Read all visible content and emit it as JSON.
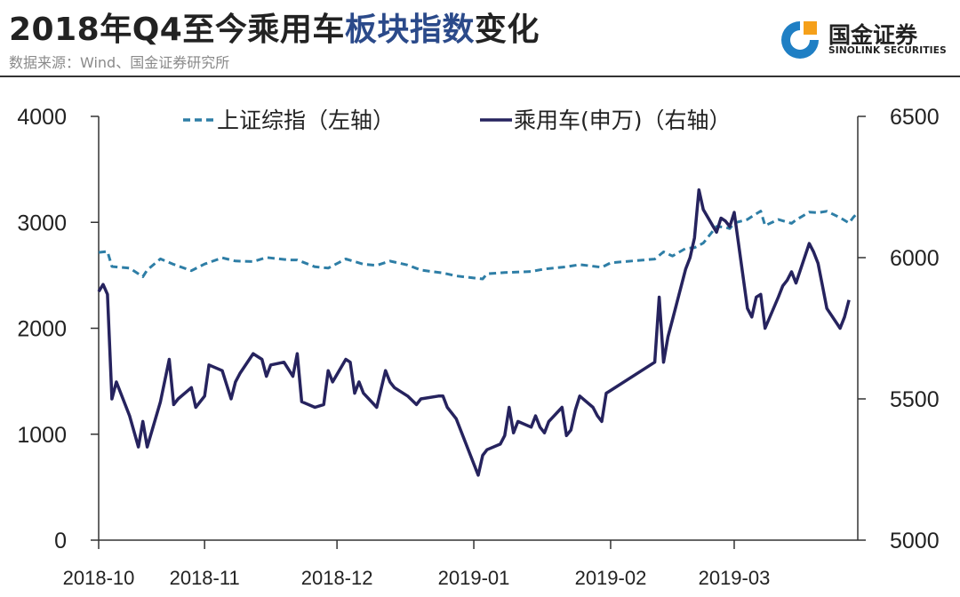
{
  "header": {
    "title_prefix": "2018年Q4至今乘用车",
    "title_highlight": "板块指数",
    "title_suffix": "变化",
    "source": "数据来源：Wind、国金证券研究所"
  },
  "logo": {
    "name": "国金证券",
    "english": "SINOLINK SECURITIES",
    "icon": "sinolink-logo-icon",
    "colors": {
      "blue": "#1f7fc4",
      "orange": "#f5a01a"
    }
  },
  "chart_data": {
    "type": "line",
    "title": "2018年Q4至今乘用车板块指数变化",
    "x_ticks": [
      "2018-10",
      "2018-11",
      "2018-12",
      "2019-01",
      "2019-02",
      "2019-03"
    ],
    "xlim": [
      "2018-10-08",
      "2019-03-29"
    ],
    "y_left": {
      "label": "上证综指（左轴）",
      "ticks": [
        0,
        1000,
        2000,
        3000,
        4000
      ],
      "ylim": [
        0,
        4000
      ]
    },
    "y_right": {
      "label": "乘用车(申万)（右轴）",
      "ticks": [
        5000,
        5500,
        6000,
        6500
      ],
      "ylim": [
        5000,
        6500
      ]
    },
    "grid": false,
    "legend": "top",
    "series": [
      {
        "name": "上证综指（左轴）",
        "axis": "left",
        "color": "#2e7ea6",
        "style": "dashed",
        "points": [
          [
            "2018-10-08",
            2716
          ],
          [
            "2018-10-10",
            2725
          ],
          [
            "2018-10-11",
            2583
          ],
          [
            "2018-10-15",
            2568
          ],
          [
            "2018-10-18",
            2486
          ],
          [
            "2018-10-19",
            2550
          ],
          [
            "2018-10-22",
            2655
          ],
          [
            "2018-10-25",
            2603
          ],
          [
            "2018-10-29",
            2543
          ],
          [
            "2018-11-01",
            2606
          ],
          [
            "2018-11-05",
            2665
          ],
          [
            "2018-11-08",
            2635
          ],
          [
            "2018-11-12",
            2630
          ],
          [
            "2018-11-15",
            2668
          ],
          [
            "2018-11-20",
            2645
          ],
          [
            "2018-11-22",
            2645
          ],
          [
            "2018-11-26",
            2580
          ],
          [
            "2018-11-29",
            2568
          ],
          [
            "2018-12-03",
            2654
          ],
          [
            "2018-12-07",
            2605
          ],
          [
            "2018-12-10",
            2594
          ],
          [
            "2018-12-13",
            2634
          ],
          [
            "2018-12-17",
            2597
          ],
          [
            "2018-12-20",
            2549
          ],
          [
            "2018-12-25",
            2522
          ],
          [
            "2018-12-28",
            2494
          ],
          [
            "2019-01-03",
            2465
          ],
          [
            "2019-01-04",
            2514
          ],
          [
            "2019-01-08",
            2526
          ],
          [
            "2019-01-14",
            2536
          ],
          [
            "2019-01-17",
            2559
          ],
          [
            "2019-01-22",
            2580
          ],
          [
            "2019-01-25",
            2601
          ],
          [
            "2019-01-30",
            2575
          ],
          [
            "2019-02-01",
            2618
          ],
          [
            "2019-02-11",
            2653
          ],
          [
            "2019-02-13",
            2721
          ],
          [
            "2019-02-15",
            2682
          ],
          [
            "2019-02-18",
            2754
          ],
          [
            "2019-02-20",
            2761
          ],
          [
            "2019-02-22",
            2804
          ],
          [
            "2019-02-25",
            2961
          ],
          [
            "2019-02-27",
            2953
          ],
          [
            "2019-02-28",
            2941
          ],
          [
            "2019-03-01",
            2994
          ],
          [
            "2019-03-04",
            3027
          ],
          [
            "2019-03-05",
            3054
          ],
          [
            "2019-03-07",
            3106
          ],
          [
            "2019-03-08",
            2969
          ],
          [
            "2019-03-11",
            3026
          ],
          [
            "2019-03-14",
            2990
          ],
          [
            "2019-03-15",
            3022
          ],
          [
            "2019-03-18",
            3096
          ],
          [
            "2019-03-20",
            3091
          ],
          [
            "2019-03-22",
            3104
          ],
          [
            "2019-03-25",
            3044
          ],
          [
            "2019-03-27",
            2994
          ],
          [
            "2019-03-28",
            3047
          ],
          [
            "2019-03-29",
            3091
          ]
        ]
      },
      {
        "name": "乘用车(申万)（右轴）",
        "axis": "right",
        "color": "#26235e",
        "style": "solid",
        "points": [
          [
            "2018-10-08",
            5880
          ],
          [
            "2018-10-09",
            5905
          ],
          [
            "2018-10-10",
            5870
          ],
          [
            "2018-10-11",
            5500
          ],
          [
            "2018-10-12",
            5560
          ],
          [
            "2018-10-15",
            5440
          ],
          [
            "2018-10-17",
            5330
          ],
          [
            "2018-10-18",
            5420
          ],
          [
            "2018-10-19",
            5330
          ],
          [
            "2018-10-22",
            5490
          ],
          [
            "2018-10-24",
            5640
          ],
          [
            "2018-10-25",
            5480
          ],
          [
            "2018-10-26",
            5500
          ],
          [
            "2018-10-29",
            5540
          ],
          [
            "2018-10-30",
            5470
          ],
          [
            "2018-11-01",
            5510
          ],
          [
            "2018-11-02",
            5620
          ],
          [
            "2018-11-05",
            5600
          ],
          [
            "2018-11-07",
            5500
          ],
          [
            "2018-11-08",
            5560
          ],
          [
            "2018-11-09",
            5590
          ],
          [
            "2018-11-12",
            5660
          ],
          [
            "2018-11-14",
            5640
          ],
          [
            "2018-11-15",
            5580
          ],
          [
            "2018-11-16",
            5620
          ],
          [
            "2018-11-19",
            5630
          ],
          [
            "2018-11-21",
            5580
          ],
          [
            "2018-11-22",
            5660
          ],
          [
            "2018-11-23",
            5490
          ],
          [
            "2018-11-26",
            5470
          ],
          [
            "2018-11-28",
            5480
          ],
          [
            "2018-11-29",
            5600
          ],
          [
            "2018-11-30",
            5560
          ],
          [
            "2018-12-03",
            5640
          ],
          [
            "2018-12-04",
            5630
          ],
          [
            "2018-12-05",
            5520
          ],
          [
            "2018-12-06",
            5560
          ],
          [
            "2018-12-07",
            5520
          ],
          [
            "2018-12-10",
            5470
          ],
          [
            "2018-12-12",
            5600
          ],
          [
            "2018-12-13",
            5560
          ],
          [
            "2018-12-14",
            5540
          ],
          [
            "2018-12-17",
            5510
          ],
          [
            "2018-12-19",
            5480
          ],
          [
            "2018-12-20",
            5500
          ],
          [
            "2018-12-24",
            5510
          ],
          [
            "2018-12-25",
            5510
          ],
          [
            "2018-12-26",
            5470
          ],
          [
            "2018-12-28",
            5430
          ],
          [
            "2019-01-02",
            5230
          ],
          [
            "2019-01-03",
            5300
          ],
          [
            "2019-01-04",
            5320
          ],
          [
            "2019-01-07",
            5340
          ],
          [
            "2019-01-08",
            5370
          ],
          [
            "2019-01-09",
            5470
          ],
          [
            "2019-01-10",
            5380
          ],
          [
            "2019-01-11",
            5420
          ],
          [
            "2019-01-14",
            5400
          ],
          [
            "2019-01-15",
            5440
          ],
          [
            "2019-01-16",
            5400
          ],
          [
            "2019-01-17",
            5380
          ],
          [
            "2019-01-18",
            5420
          ],
          [
            "2019-01-21",
            5470
          ],
          [
            "2019-01-22",
            5370
          ],
          [
            "2019-01-23",
            5390
          ],
          [
            "2019-01-24",
            5460
          ],
          [
            "2019-01-25",
            5510
          ],
          [
            "2019-01-28",
            5470
          ],
          [
            "2019-01-29",
            5440
          ],
          [
            "2019-01-30",
            5420
          ],
          [
            "2019-01-31",
            5520
          ],
          [
            "2019-02-01",
            5530
          ],
          [
            "2019-02-11",
            5630
          ],
          [
            "2019-02-12",
            5860
          ],
          [
            "2019-02-13",
            5630
          ],
          [
            "2019-02-14",
            5720
          ],
          [
            "2019-02-15",
            5780
          ],
          [
            "2019-02-18",
            5960
          ],
          [
            "2019-02-19",
            6000
          ],
          [
            "2019-02-20",
            6070
          ],
          [
            "2019-02-21",
            6240
          ],
          [
            "2019-02-22",
            6170
          ],
          [
            "2019-02-25",
            6090
          ],
          [
            "2019-02-26",
            6140
          ],
          [
            "2019-02-27",
            6130
          ],
          [
            "2019-02-28",
            6110
          ],
          [
            "2019-03-01",
            6160
          ],
          [
            "2019-03-04",
            5820
          ],
          [
            "2019-03-05",
            5790
          ],
          [
            "2019-03-06",
            5860
          ],
          [
            "2019-03-07",
            5870
          ],
          [
            "2019-03-08",
            5750
          ],
          [
            "2019-03-11",
            5860
          ],
          [
            "2019-03-12",
            5900
          ],
          [
            "2019-03-13",
            5920
          ],
          [
            "2019-03-14",
            5950
          ],
          [
            "2019-03-15",
            5910
          ],
          [
            "2019-03-18",
            6050
          ],
          [
            "2019-03-19",
            6020
          ],
          [
            "2019-03-20",
            5980
          ],
          [
            "2019-03-21",
            5900
          ],
          [
            "2019-03-22",
            5820
          ],
          [
            "2019-03-25",
            5750
          ],
          [
            "2019-03-26",
            5790
          ],
          [
            "2019-03-27",
            5850
          ]
        ]
      }
    ]
  }
}
